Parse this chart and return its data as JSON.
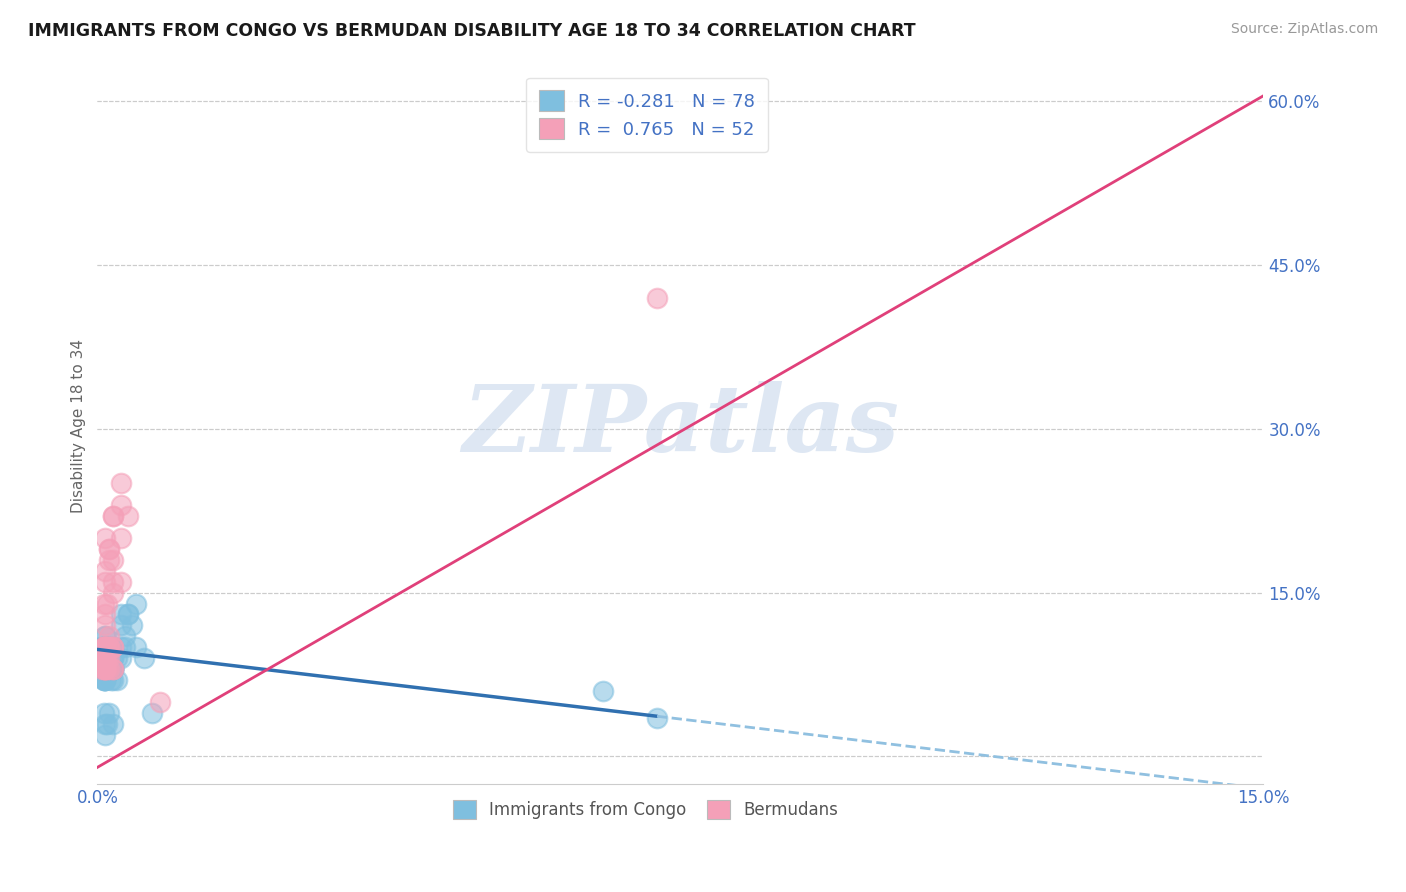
{
  "title": "IMMIGRANTS FROM CONGO VS BERMUDAN DISABILITY AGE 18 TO 34 CORRELATION CHART",
  "source": "Source: ZipAtlas.com",
  "ylabel": "Disability Age 18 to 34",
  "blue_color": "#7fbfdf",
  "pink_color": "#f4a0b8",
  "trendline_blue_solid_color": "#3070b0",
  "trendline_blue_dash_color": "#90c0e0",
  "trendline_pink_color": "#e0407a",
  "watermark_text": "ZIPatlas",
  "watermark_color": "#c8d8ec",
  "legend_r1": "R = -0.281",
  "legend_n1": "N = 78",
  "legend_r2": "R =  0.765",
  "legend_n2": "N = 52",
  "xlim": [
    0.0,
    0.15
  ],
  "ylim": [
    -0.025,
    0.63
  ],
  "x_ticks": [
    0.0,
    0.15
  ],
  "y_ticks": [
    0.0,
    0.15,
    0.3,
    0.45,
    0.6
  ],
  "y_tick_labels": [
    "",
    "15.0%",
    "30.0%",
    "45.0%",
    "60.0%"
  ],
  "x_tick_labels": [
    "0.0%",
    "15.0%"
  ],
  "blue_x": [
    0.0005,
    0.001,
    0.0008,
    0.001,
    0.0015,
    0.002,
    0.001,
    0.0012,
    0.0008,
    0.0006,
    0.001,
    0.0015,
    0.002,
    0.0025,
    0.003,
    0.0018,
    0.0012,
    0.0008,
    0.001,
    0.0005,
    0.0015,
    0.002,
    0.001,
    0.0008,
    0.0012,
    0.0018,
    0.001,
    0.0006,
    0.002,
    0.0015,
    0.001,
    0.0008,
    0.0012,
    0.001,
    0.0015,
    0.002,
    0.0025,
    0.003,
    0.0035,
    0.002,
    0.0015,
    0.001,
    0.0008,
    0.001,
    0.0015,
    0.002,
    0.001,
    0.0012,
    0.0018,
    0.002,
    0.0005,
    0.001,
    0.0015,
    0.002,
    0.001,
    0.0008,
    0.0012,
    0.0015,
    0.002,
    0.001,
    0.004,
    0.005,
    0.003,
    0.004,
    0.0035,
    0.005,
    0.006,
    0.007,
    0.003,
    0.0045,
    0.002,
    0.0015,
    0.001,
    0.001,
    0.0008,
    0.0012,
    0.065,
    0.072
  ],
  "blue_y": [
    0.1,
    0.09,
    0.08,
    0.11,
    0.09,
    0.1,
    0.08,
    0.09,
    0.07,
    0.1,
    0.09,
    0.1,
    0.08,
    0.09,
    0.1,
    0.08,
    0.09,
    0.08,
    0.07,
    0.09,
    0.1,
    0.09,
    0.08,
    0.07,
    0.09,
    0.08,
    0.1,
    0.09,
    0.07,
    0.08,
    0.11,
    0.09,
    0.08,
    0.1,
    0.09,
    0.08,
    0.07,
    0.09,
    0.1,
    0.08,
    0.09,
    0.1,
    0.08,
    0.07,
    0.09,
    0.1,
    0.08,
    0.09,
    0.07,
    0.08,
    0.09,
    0.1,
    0.08,
    0.09,
    0.07,
    0.08,
    0.09,
    0.1,
    0.08,
    0.09,
    0.13,
    0.14,
    0.12,
    0.13,
    0.11,
    0.1,
    0.09,
    0.04,
    0.13,
    0.12,
    0.03,
    0.04,
    0.02,
    0.03,
    0.04,
    0.03,
    0.06,
    0.035
  ],
  "pink_x": [
    0.0005,
    0.001,
    0.0008,
    0.001,
    0.0015,
    0.0012,
    0.0008,
    0.001,
    0.0006,
    0.001,
    0.0015,
    0.002,
    0.001,
    0.0008,
    0.001,
    0.0012,
    0.002,
    0.0015,
    0.001,
    0.0008,
    0.001,
    0.0015,
    0.002,
    0.001,
    0.0008,
    0.001,
    0.0015,
    0.001,
    0.0012,
    0.002,
    0.003,
    0.002,
    0.0015,
    0.001,
    0.0008,
    0.001,
    0.002,
    0.001,
    0.003,
    0.002,
    0.001,
    0.0015,
    0.002,
    0.0012,
    0.001,
    0.0015,
    0.003,
    0.004,
    0.002,
    0.003,
    0.072,
    0.008
  ],
  "pink_y": [
    0.09,
    0.1,
    0.08,
    0.09,
    0.1,
    0.08,
    0.09,
    0.1,
    0.08,
    0.09,
    0.1,
    0.08,
    0.09,
    0.1,
    0.08,
    0.09,
    0.1,
    0.08,
    0.09,
    0.1,
    0.08,
    0.09,
    0.1,
    0.08,
    0.09,
    0.1,
    0.11,
    0.09,
    0.1,
    0.08,
    0.2,
    0.22,
    0.19,
    0.16,
    0.14,
    0.13,
    0.15,
    0.12,
    0.25,
    0.22,
    0.2,
    0.18,
    0.16,
    0.14,
    0.17,
    0.19,
    0.23,
    0.22,
    0.18,
    0.16,
    0.42,
    0.05
  ],
  "blue_trend_x0": 0.0,
  "blue_trend_x_solid_end": 0.072,
  "blue_trend_x_dash_end": 0.15,
  "blue_trend_y0": 0.098,
  "blue_trend_slope": -0.85,
  "pink_trend_x0": 0.0,
  "pink_trend_x_end": 0.15,
  "pink_trend_y0": -0.01,
  "pink_trend_slope": 4.1
}
